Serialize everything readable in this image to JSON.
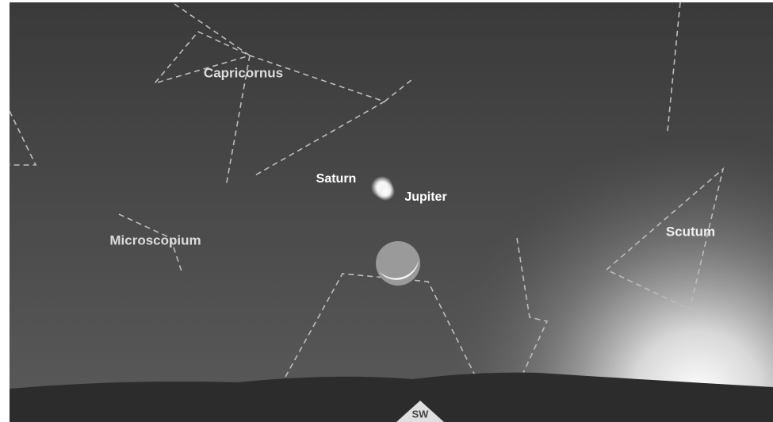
{
  "constellations": [
    {
      "label": "Capricornus"
    },
    {
      "label": "Microscopium"
    },
    {
      "label": "Scutum"
    }
  ],
  "planets": [
    {
      "label": "Saturn"
    },
    {
      "label": "Jupiter"
    }
  ],
  "direction": "SW"
}
